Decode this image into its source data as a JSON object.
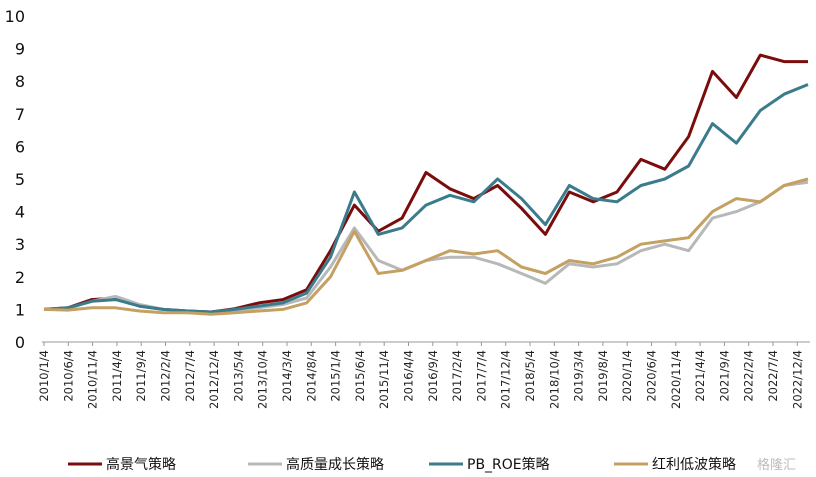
{
  "chart_data": {
    "type": "line",
    "title": "",
    "xlabel": "",
    "ylabel": "",
    "ylim": [
      0,
      10
    ],
    "yticks": [
      0,
      1,
      2,
      3,
      4,
      5,
      6,
      7,
      8,
      9,
      10
    ],
    "x_tick_labels": [
      "2010/1/4",
      "2010/6/4",
      "2010/11/4",
      "2011/4/4",
      "2011/9/4",
      "2012/2/4",
      "2012/7/4",
      "2012/12/4",
      "2013/5/4",
      "2013/10/4",
      "2014/3/4",
      "2014/8/4",
      "2015/1/4",
      "2015/6/4",
      "2015/11/4",
      "2016/4/4",
      "2016/9/4",
      "2017/2/4",
      "2017/7/4",
      "2017/12/4",
      "2018/5/4",
      "2018/10/4",
      "2019/3/4",
      "2019/8/4",
      "2020/1/4",
      "2020/6/4",
      "2020/11/4",
      "2021/4/4",
      "2021/9/4",
      "2022/2/4",
      "2022/7/4",
      "2022/12/4"
    ],
    "grid": false,
    "legend_position": "bottom",
    "x": [
      "2010/1/4",
      "2010/6/4",
      "2010/11/4",
      "2011/4/4",
      "2011/9/4",
      "2012/2/4",
      "2012/7/4",
      "2012/12/4",
      "2013/5/4",
      "2013/10/4",
      "2014/3/4",
      "2014/8/4",
      "2015/1/4",
      "2015/6/4",
      "2015/11/4",
      "2016/4/4",
      "2016/9/4",
      "2017/2/4",
      "2017/7/4",
      "2017/12/4",
      "2018/5/4",
      "2018/10/4",
      "2019/3/4",
      "2019/8/4",
      "2020/1/4",
      "2020/6/4",
      "2020/11/4",
      "2021/4/4",
      "2021/9/4",
      "2022/2/4",
      "2022/7/4",
      "2022/12/4",
      "2023/3/1"
    ],
    "series": [
      {
        "name": "高景气策略",
        "color": "#7a0c0c",
        "values": [
          1.0,
          1.05,
          1.3,
          1.35,
          1.1,
          1.0,
          0.95,
          0.92,
          1.02,
          1.2,
          1.3,
          1.6,
          2.8,
          4.2,
          3.4,
          3.8,
          5.2,
          4.7,
          4.4,
          4.8,
          4.1,
          3.3,
          4.6,
          4.3,
          4.6,
          5.6,
          5.3,
          6.3,
          8.3,
          7.5,
          8.8,
          8.6,
          8.6
        ]
      },
      {
        "name": "高质量成长策略",
        "color": "#b7b8b9",
        "values": [
          1.0,
          1.02,
          1.25,
          1.4,
          1.15,
          1.0,
          0.93,
          0.9,
          0.98,
          1.05,
          1.15,
          1.35,
          2.3,
          3.5,
          2.5,
          2.2,
          2.5,
          2.6,
          2.6,
          2.4,
          2.1,
          1.8,
          2.4,
          2.3,
          2.4,
          2.8,
          3.0,
          2.8,
          3.8,
          4.0,
          4.3,
          4.8,
          4.9
        ]
      },
      {
        "name": "PB_ROE策略",
        "color": "#3a7c8c",
        "values": [
          1.0,
          1.05,
          1.25,
          1.3,
          1.1,
          1.0,
          0.95,
          0.92,
          1.0,
          1.1,
          1.2,
          1.5,
          2.6,
          4.6,
          3.3,
          3.5,
          4.2,
          4.5,
          4.3,
          5.0,
          4.4,
          3.6,
          4.8,
          4.4,
          4.3,
          4.8,
          5.0,
          5.4,
          6.7,
          6.1,
          7.1,
          7.6,
          7.9
        ]
      },
      {
        "name": "红利低波策略",
        "color": "#c4a063",
        "values": [
          1.0,
          0.98,
          1.05,
          1.05,
          0.95,
          0.9,
          0.9,
          0.85,
          0.9,
          0.95,
          1.0,
          1.2,
          2.0,
          3.4,
          2.1,
          2.2,
          2.5,
          2.8,
          2.7,
          2.8,
          2.3,
          2.1,
          2.5,
          2.4,
          2.6,
          3.0,
          3.1,
          3.2,
          4.0,
          4.4,
          4.3,
          4.8,
          5.0
        ]
      }
    ]
  },
  "legend": [
    {
      "label": "高景气策略",
      "color": "#7a0c0c"
    },
    {
      "label": "高质量成长策略",
      "color": "#b7b8b9"
    },
    {
      "label": "PB_ROE策略",
      "color": "#3a7c8c"
    },
    {
      "label": "红利低波策略",
      "color": "#c4a063"
    }
  ],
  "watermark": "格隆汇"
}
